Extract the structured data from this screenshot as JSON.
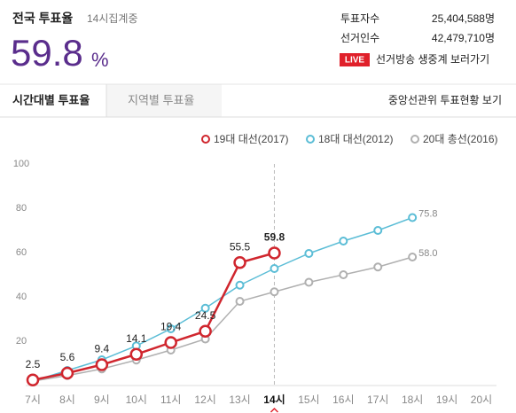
{
  "header": {
    "title": "전국 투표율",
    "status": "14시집계중",
    "turnout": 59.8,
    "unit": "%",
    "stats": [
      {
        "label": "투표자수",
        "value": "25,404,588명"
      },
      {
        "label": "선거인수",
        "value": "42,479,710명"
      }
    ],
    "live_badge": "LIVE",
    "live_link": "선거방송 생중계 보러가기"
  },
  "tabs": {
    "items": [
      "시간대별 투표율",
      "지역별 투표율"
    ],
    "link": "중앙선관위 투표현황 보기"
  },
  "chart_data": {
    "type": "line",
    "categories": [
      "7시",
      "8시",
      "9시",
      "10시",
      "11시",
      "12시",
      "13시",
      "14시",
      "15시",
      "16시",
      "17시",
      "18시",
      "19시",
      "20시"
    ],
    "highlight": 7,
    "ylim": [
      0,
      100
    ],
    "yticks": [
      20,
      40,
      60,
      80,
      100
    ],
    "series": [
      {
        "name": "19대 대선(2017)",
        "color": "#d0262e",
        "emphasis": true,
        "values": [
          2.5,
          5.6,
          9.4,
          14.1,
          19.4,
          24.5,
          55.5,
          59.8,
          null,
          null,
          null,
          null,
          null,
          null
        ],
        "value_labels": [
          "2.5",
          "5.6",
          "9.4",
          "14.1",
          "19.4",
          "24.5",
          "55.5",
          "59.8",
          null,
          null,
          null,
          null,
          null,
          null
        ]
      },
      {
        "name": "18대 대선(2012)",
        "color": "#5bbdd6",
        "emphasis": false,
        "values": [
          2.0,
          6.8,
          11.6,
          17.9,
          25.6,
          34.9,
          45.3,
          52.8,
          59.6,
          65.2,
          70.0,
          75.8,
          null,
          null
        ],
        "value_labels": [
          null,
          null,
          null,
          null,
          null,
          null,
          null,
          null,
          null,
          null,
          null,
          "75.8",
          null,
          null
        ]
      },
      {
        "name": "20대 총선(2016)",
        "color": "#b0b0b0",
        "emphasis": false,
        "values": [
          2.0,
          4.5,
          7.5,
          11.5,
          16.0,
          21.0,
          38.0,
          42.3,
          46.6,
          50.0,
          53.5,
          58.0,
          null,
          null
        ],
        "value_labels": [
          null,
          null,
          null,
          null,
          null,
          null,
          null,
          null,
          null,
          null,
          null,
          "58.0",
          null,
          null
        ]
      }
    ]
  }
}
